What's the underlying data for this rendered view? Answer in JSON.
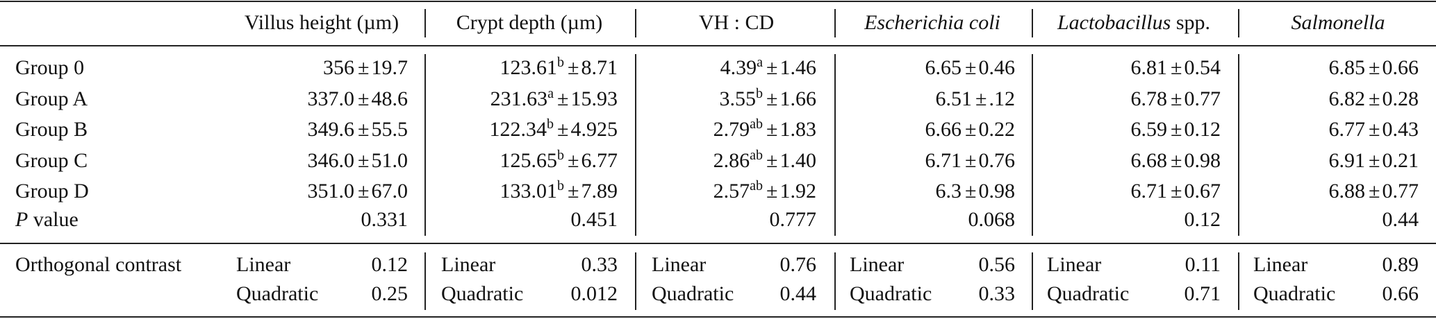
{
  "table": {
    "columns": [
      {
        "header": [
          {
            "text": "Villus height (µm)",
            "italic": false
          }
        ]
      },
      {
        "header": [
          {
            "text": "Crypt depth (µm)",
            "italic": false
          }
        ]
      },
      {
        "header": [
          {
            "text": "VH : CD",
            "italic": false
          }
        ]
      },
      {
        "header": [
          {
            "text": "Escherichia coli",
            "italic": true
          }
        ]
      },
      {
        "header": [
          {
            "text": "Lactobacillus",
            "italic": true
          },
          {
            "text": " spp.",
            "italic": false
          }
        ]
      },
      {
        "header": [
          {
            "text": "Salmonella",
            "italic": true
          }
        ]
      }
    ],
    "pm_symbol": "±",
    "rows": [
      {
        "label": "Group 0",
        "values": [
          {
            "mean": "356",
            "sup": "",
            "sd": "19.7"
          },
          {
            "mean": "123.61",
            "sup": "b",
            "sd": "8.71"
          },
          {
            "mean": "4.39",
            "sup": "a",
            "sd": "1.46"
          },
          {
            "mean": "6.65",
            "sup": "",
            "sd": "0.46"
          },
          {
            "mean": "6.81",
            "sup": "",
            "sd": "0.54"
          },
          {
            "mean": "6.85",
            "sup": "",
            "sd": "0.66"
          }
        ]
      },
      {
        "label": "Group A",
        "values": [
          {
            "mean": "337.0",
            "sup": "",
            "sd": "48.6"
          },
          {
            "mean": "231.63",
            "sup": "a",
            "sd": "15.93"
          },
          {
            "mean": "3.55",
            "sup": "b",
            "sd": "1.66"
          },
          {
            "mean": "6.51",
            "sup": "",
            "sd": ".12"
          },
          {
            "mean": "6.78",
            "sup": "",
            "sd": "0.77"
          },
          {
            "mean": "6.82",
            "sup": "",
            "sd": "0.28"
          }
        ]
      },
      {
        "label": "Group B",
        "values": [
          {
            "mean": "349.6",
            "sup": "",
            "sd": "55.5"
          },
          {
            "mean": "122.34",
            "sup": "b",
            "sd": "4.925"
          },
          {
            "mean": "2.79",
            "sup": "ab",
            "sd": "1.83"
          },
          {
            "mean": "6.66",
            "sup": "",
            "sd": "0.22"
          },
          {
            "mean": "6.59",
            "sup": "",
            "sd": "0.12"
          },
          {
            "mean": "6.77",
            "sup": "",
            "sd": "0.43"
          }
        ]
      },
      {
        "label": "Group C",
        "values": [
          {
            "mean": "346.0",
            "sup": "",
            "sd": "51.0"
          },
          {
            "mean": "125.65",
            "sup": "b",
            "sd": "6.77"
          },
          {
            "mean": "2.86",
            "sup": "ab",
            "sd": "1.40"
          },
          {
            "mean": "6.71",
            "sup": "",
            "sd": "0.76"
          },
          {
            "mean": "6.68",
            "sup": "",
            "sd": "0.98"
          },
          {
            "mean": "6.91",
            "sup": "",
            "sd": "0.21"
          }
        ]
      },
      {
        "label": "Group D",
        "values": [
          {
            "mean": "351.0",
            "sup": "",
            "sd": "67.0"
          },
          {
            "mean": "133.01",
            "sup": "b",
            "sd": "7.89"
          },
          {
            "mean": "2.57",
            "sup": "ab",
            "sd": "1.92"
          },
          {
            "mean": "6.3",
            "sup": "",
            "sd": "0.98"
          },
          {
            "mean": "6.71",
            "sup": "",
            "sd": "0.67"
          },
          {
            "mean": "6.88",
            "sup": "",
            "sd": "0.77"
          }
        ]
      }
    ],
    "p_row": {
      "label_italic": "P",
      "label_rest": " value",
      "values": [
        "0.331",
        "0.451",
        "0.777",
        "0.068",
        "0.12",
        "0.44"
      ]
    },
    "contrast": {
      "label": "Orthogonal contrast",
      "linear_label": "Linear",
      "quadratic_label": "Quadratic",
      "linear": [
        "0.12",
        "0.33",
        "0.76",
        "0.56",
        "0.11",
        "0.89"
      ],
      "quadratic": [
        "0.25",
        "0.012",
        "0.44",
        "0.33",
        "0.71",
        "0.66"
      ]
    }
  }
}
